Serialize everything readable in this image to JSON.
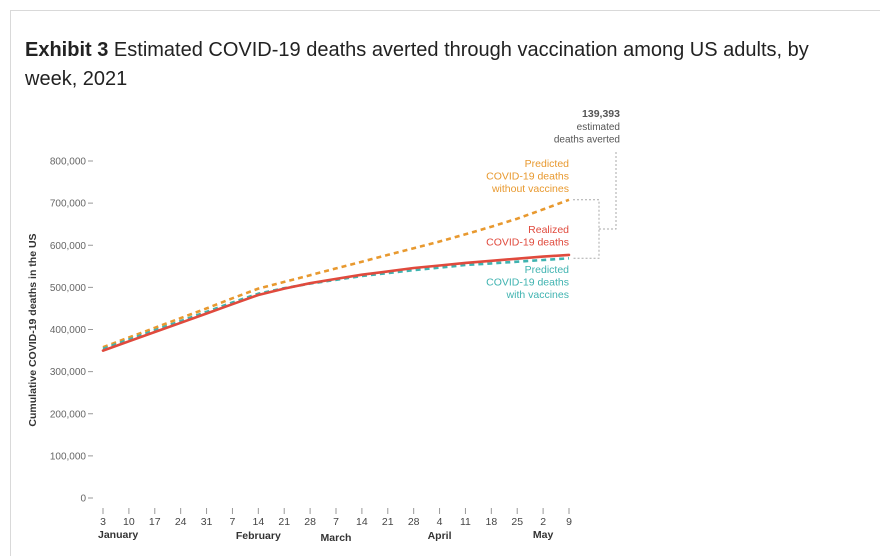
{
  "exhibit": {
    "label": "Exhibit 3",
    "title": "Estimated COVID-19 deaths averted through vaccination among US adults, by week, 2021"
  },
  "chart_data": {
    "type": "line",
    "ylabel": "Cumulative COVID-19 deaths in the US",
    "ylim": [
      0,
      800000
    ],
    "yticks": [
      0,
      100000,
      200000,
      300000,
      400000,
      500000,
      600000,
      700000,
      800000
    ],
    "ytick_labels": [
      "0",
      "100,000",
      "200,000",
      "300,000",
      "400,000",
      "500,000",
      "600,000",
      "700,000",
      "800,000"
    ],
    "x_week_labels": [
      "3",
      "10",
      "17",
      "24",
      "31",
      "7",
      "14",
      "21",
      "28",
      "7",
      "14",
      "21",
      "28",
      "4",
      "11",
      "18",
      "25",
      "2",
      "9"
    ],
    "months": [
      {
        "label": "January",
        "week_index": 0
      },
      {
        "label": "February",
        "week_index": 6
      },
      {
        "label": "March",
        "week_index": 9
      },
      {
        "label": "April",
        "week_index": 13
      },
      {
        "label": "May",
        "week_index": 17
      }
    ],
    "series": [
      {
        "name": "Predicted COVID-19 deaths without vaccines",
        "label_lines": [
          "Predicted",
          "COVID-19 deaths",
          "without vaccines"
        ],
        "color": "#e8992f",
        "dash": true,
        "values": [
          358000,
          381000,
          404000,
          427000,
          450000,
          474000,
          497000,
          513000,
          529000,
          545000,
          561000,
          577000,
          593000,
          609000,
          626000,
          644000,
          663000,
          685000,
          708000
        ]
      },
      {
        "name": "Realized COVID-19 deaths",
        "label_lines": [
          "Realized",
          "COVID-19 deaths"
        ],
        "color": "#e04a3d",
        "dash": false,
        "values": [
          350000,
          372000,
          394000,
          416000,
          438000,
          460000,
          482000,
          497000,
          510000,
          520000,
          530000,
          538000,
          546000,
          552000,
          558000,
          563000,
          568000,
          573000,
          577000
        ]
      },
      {
        "name": "Predicted COVID-19 deaths with vaccines",
        "label_lines": [
          "Predicted",
          "COVID-19 deaths",
          "with vaccines"
        ],
        "color": "#3fb3b0",
        "dash": true,
        "values": [
          354000,
          376000,
          398000,
          420000,
          442000,
          464000,
          485000,
          498000,
          509000,
          518000,
          527000,
          534000,
          541000,
          547000,
          553000,
          557000,
          561000,
          565000,
          569000
        ]
      }
    ],
    "annotation": {
      "value": "139,393",
      "lines": [
        "estimated",
        "deaths averted"
      ],
      "color": "#555555"
    }
  }
}
